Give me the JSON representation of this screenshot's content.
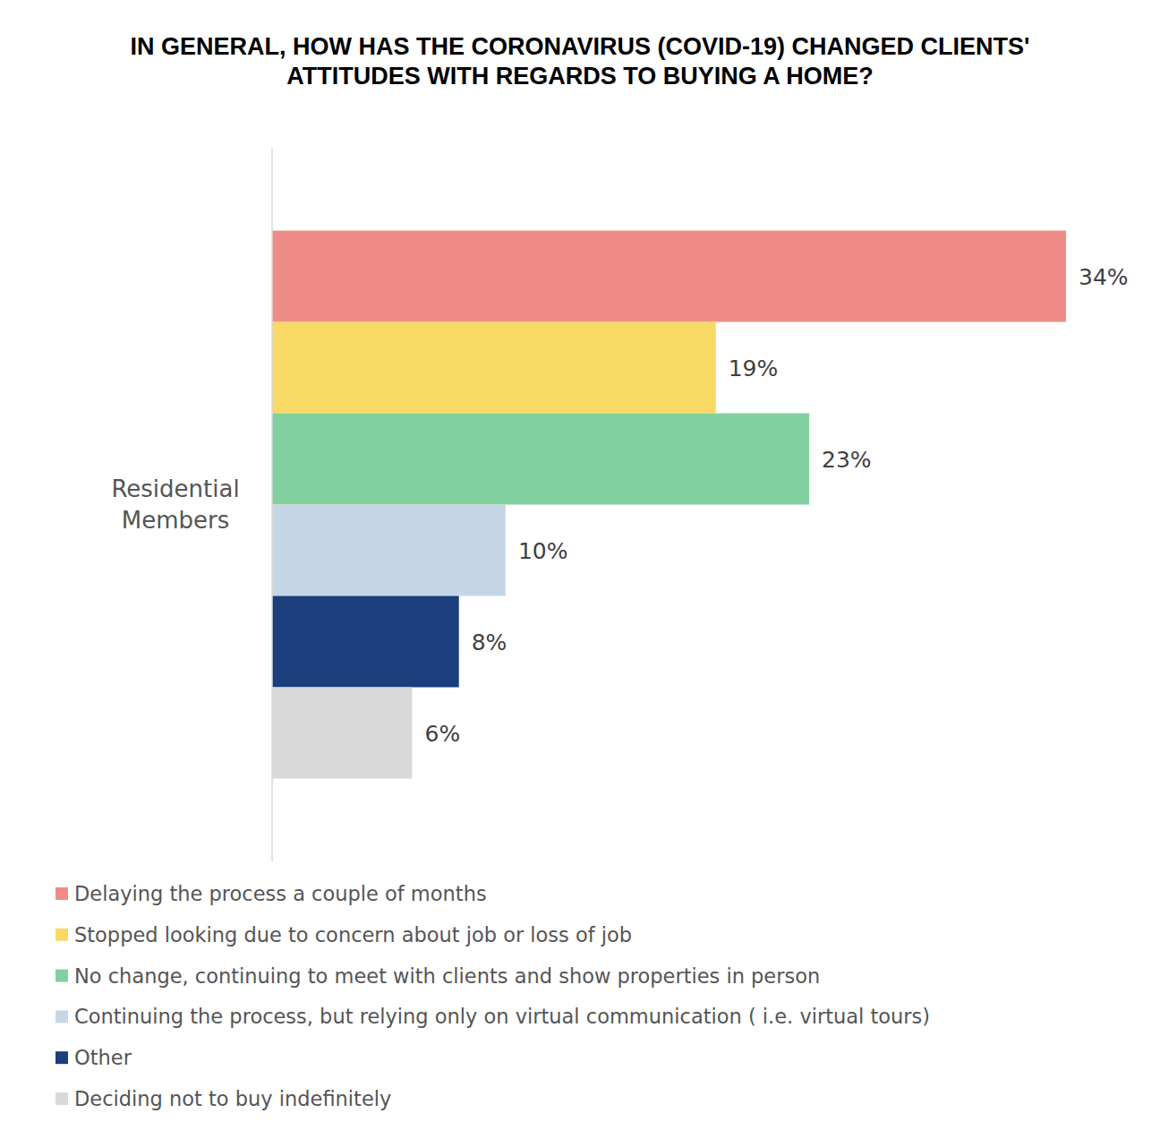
{
  "chart_data": {
    "type": "bar",
    "orientation": "horizontal",
    "title": "IN GENERAL, HOW HAS THE CORONAVIRUS (COVID-19) CHANGED CLIENTS' ATTITUDES WITH REGARDS TO BUYING A HOME?",
    "categories": [
      "Residential Members"
    ],
    "series": [
      {
        "name": "Delaying the process a couple of months",
        "color": "#f08c87",
        "values": [
          34
        ],
        "value_labels": [
          "34%"
        ]
      },
      {
        "name": "Stopped looking due to concern about job or loss of job",
        "color": "#f8d966",
        "values": [
          19
        ],
        "value_labels": [
          "19%"
        ]
      },
      {
        "name": "No change, continuing to meet with clients and show properties in person",
        "color": "#82cf9f",
        "values": [
          23
        ],
        "value_labels": [
          "23%"
        ]
      },
      {
        "name": "Continuing the process, but relying only on virtual communication ( i.e. virtual tours)",
        "color": "#c5d7e7",
        "values": [
          10
        ],
        "value_labels": [
          "10%"
        ]
      },
      {
        "name": "Other",
        "color": "#1a3f7c",
        "values": [
          8
        ],
        "value_labels": [
          "8%"
        ]
      },
      {
        "name": "Deciding not to buy indefinitely",
        "color": "#d9d9d9",
        "values": [
          6
        ],
        "value_labels": [
          "6%"
        ]
      }
    ],
    "xlim": [
      0,
      34
    ],
    "data_labels": true,
    "tick_labels": "y",
    "legend": "bottom"
  }
}
